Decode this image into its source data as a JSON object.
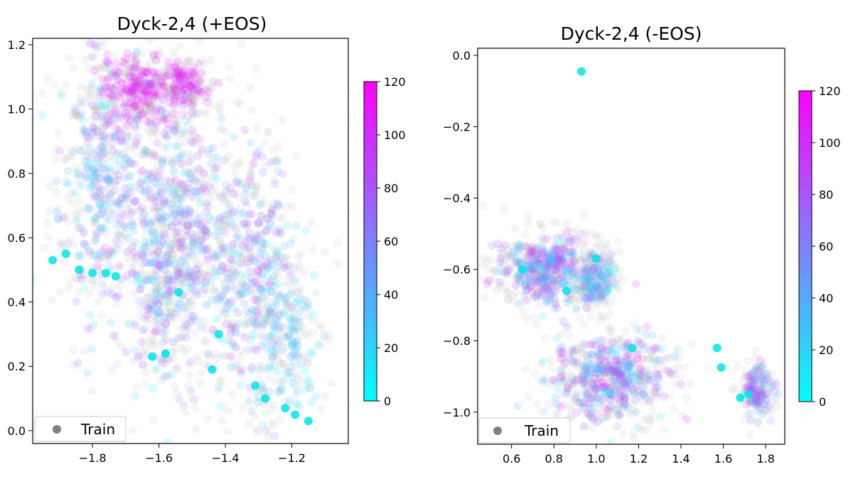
{
  "chart_data": [
    {
      "type": "scatter",
      "title": "Dyck-2,4 (+EOS)",
      "xlabel": "",
      "ylabel": "",
      "xlim": [
        -1.98,
        -1.03
      ],
      "ylim": [
        -0.04,
        1.22
      ],
      "xticks": [
        -1.8,
        -1.6,
        -1.4,
        -1.2
      ],
      "xtick_labels": [
        "−1.8",
        "−1.6",
        "−1.4",
        "−1.2"
      ],
      "yticks": [
        0.0,
        0.2,
        0.4,
        0.6,
        0.8,
        1.0,
        1.2
      ],
      "ytick_labels": [
        "0.0",
        "0.2",
        "0.4",
        "0.6",
        "0.8",
        "1.0",
        "1.2"
      ],
      "grid": false,
      "legend": {
        "position": "bottom-left",
        "entries": [
          {
            "label": "Train",
            "color": "#808080"
          }
        ]
      },
      "colorbar": {
        "min": 0,
        "max": 120,
        "ticks": [
          0,
          20,
          40,
          60,
          80,
          100,
          120
        ],
        "tick_labels": [
          "0",
          "20",
          "40",
          "60",
          "80",
          "100",
          "120"
        ],
        "colormap": "cool"
      },
      "clusters": [
        {
          "center": [
            -1.78,
            0.78
          ],
          "spread": [
            0.06,
            0.2
          ],
          "value_range": [
            0,
            100
          ],
          "count": 260
        },
        {
          "center": [
            -1.66,
            1.06
          ],
          "spread": [
            0.06,
            0.05
          ],
          "value_range": [
            100,
            120
          ],
          "count": 160
        },
        {
          "center": [
            -1.52,
            1.07
          ],
          "spread": [
            0.04,
            0.04
          ],
          "value_range": [
            95,
            120
          ],
          "count": 90
        },
        {
          "center": [
            -1.6,
            0.55
          ],
          "spread": [
            0.045,
            0.22
          ],
          "value_range": [
            0,
            110
          ],
          "count": 240
        },
        {
          "center": [
            -1.5,
            0.6
          ],
          "spread": [
            0.05,
            0.18
          ],
          "value_range": [
            10,
            100
          ],
          "count": 180
        },
        {
          "center": [
            -1.33,
            0.5
          ],
          "spread": [
            0.06,
            0.2
          ],
          "value_range": [
            0,
            110
          ],
          "count": 240
        },
        {
          "center": [
            -1.22,
            0.3
          ],
          "spread": [
            0.05,
            0.12
          ],
          "value_range": [
            0,
            50
          ],
          "count": 120
        }
      ],
      "train_points": [
        [
          -1.92,
          0.53
        ],
        [
          -1.88,
          0.55
        ],
        [
          -1.84,
          0.5
        ],
        [
          -1.8,
          0.49
        ],
        [
          -1.76,
          0.49
        ],
        [
          -1.73,
          0.48
        ],
        [
          -1.62,
          0.23
        ],
        [
          -1.58,
          0.24
        ],
        [
          -1.54,
          0.43
        ],
        [
          -1.44,
          0.19
        ],
        [
          -1.31,
          0.14
        ],
        [
          -1.28,
          0.1
        ],
        [
          -1.22,
          0.07
        ],
        [
          -1.19,
          0.05
        ],
        [
          -1.15,
          0.03
        ],
        [
          -1.42,
          0.3
        ]
      ]
    },
    {
      "type": "scatter",
      "title": "Dyck-2,4 (-EOS)",
      "xlabel": "",
      "ylabel": "",
      "xlim": [
        0.44,
        1.89
      ],
      "ylim": [
        -1.09,
        0.02
      ],
      "xticks": [
        0.6,
        0.8,
        1.0,
        1.2,
        1.4,
        1.6,
        1.8
      ],
      "xtick_labels": [
        "0.6",
        "0.8",
        "1.0",
        "1.2",
        "1.4",
        "1.6",
        "1.8"
      ],
      "yticks": [
        0.0,
        -0.2,
        -0.4,
        -0.6,
        -0.8,
        -1.0
      ],
      "ytick_labels": [
        "0.0",
        "−0.2",
        "−0.4",
        "−0.6",
        "−0.8",
        "−1.0"
      ],
      "grid": false,
      "legend": {
        "position": "bottom-left",
        "entries": [
          {
            "label": "Train",
            "color": "#808080"
          }
        ]
      },
      "colorbar": {
        "min": 0,
        "max": 120,
        "ticks": [
          0,
          20,
          40,
          60,
          80,
          100,
          120
        ],
        "tick_labels": [
          "0",
          "20",
          "40",
          "60",
          "80",
          "100",
          "120"
        ],
        "colormap": "cool"
      },
      "clusters": [
        {
          "center": [
            0.76,
            -0.6
          ],
          "spread": [
            0.1,
            0.045
          ],
          "value_range": [
            0,
            120
          ],
          "count": 280
        },
        {
          "center": [
            1.0,
            -0.63
          ],
          "spread": [
            0.04,
            0.04
          ],
          "value_range": [
            0,
            90
          ],
          "count": 110
        },
        {
          "center": [
            1.06,
            -0.9
          ],
          "spread": [
            0.13,
            0.055
          ],
          "value_range": [
            0,
            120
          ],
          "count": 320
        },
        {
          "center": [
            1.76,
            -0.94
          ],
          "spread": [
            0.035,
            0.035
          ],
          "value_range": [
            20,
            110
          ],
          "count": 90
        }
      ],
      "train_points": [
        [
          0.93,
          -0.045
        ],
        [
          1.17,
          -0.82
        ],
        [
          1.57,
          -0.82
        ],
        [
          1.59,
          -0.875
        ],
        [
          1.68,
          -0.96
        ],
        [
          1.72,
          -0.95
        ],
        [
          0.65,
          -0.6
        ],
        [
          0.86,
          -0.66
        ],
        [
          1.0,
          -0.57
        ]
      ]
    }
  ]
}
